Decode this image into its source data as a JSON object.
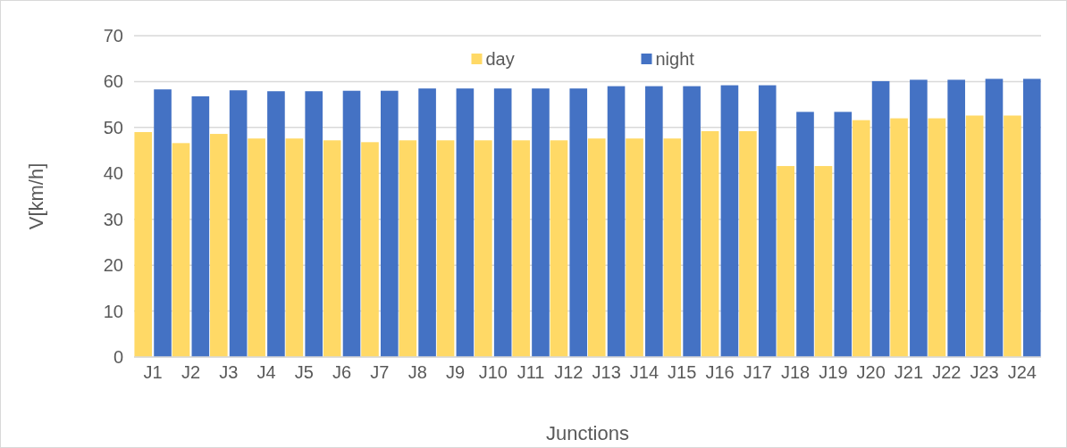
{
  "chart_data": {
    "type": "bar",
    "xlabel": "Junctions",
    "ylabel": "V[km/h]",
    "categories": [
      "J1",
      "J2",
      "J3",
      "J4",
      "J5",
      "J6",
      "J7",
      "J8",
      "J9",
      "J10",
      "J11",
      "J12",
      "J13",
      "J14",
      "J15",
      "J16",
      "J17",
      "J18",
      "J19",
      "J20",
      "J21",
      "J22",
      "J23",
      "J24"
    ],
    "series": [
      {
        "name": "day",
        "color": "#ffd966",
        "values": [
          49,
          46.6,
          48.6,
          47.6,
          47.6,
          47.2,
          46.8,
          47.2,
          47.2,
          47.2,
          47.2,
          47.2,
          47.6,
          47.6,
          47.6,
          49.2,
          49.2,
          41.6,
          41.6,
          51.6,
          52,
          52,
          52.6,
          52.6
        ]
      },
      {
        "name": "night",
        "color": "#4472c4",
        "values": [
          58.3,
          56.8,
          58.1,
          57.9,
          57.9,
          58,
          58,
          58.5,
          58.5,
          58.5,
          58.5,
          58.5,
          59,
          59,
          59,
          59.2,
          59.2,
          53.4,
          53.4,
          60.1,
          60.4,
          60.4,
          60.6,
          60.6
        ]
      }
    ],
    "ylim": [
      0,
      70
    ],
    "yticks": [
      0,
      10,
      20,
      30,
      40,
      50,
      60,
      70
    ],
    "grid": "y",
    "legend": "top"
  }
}
